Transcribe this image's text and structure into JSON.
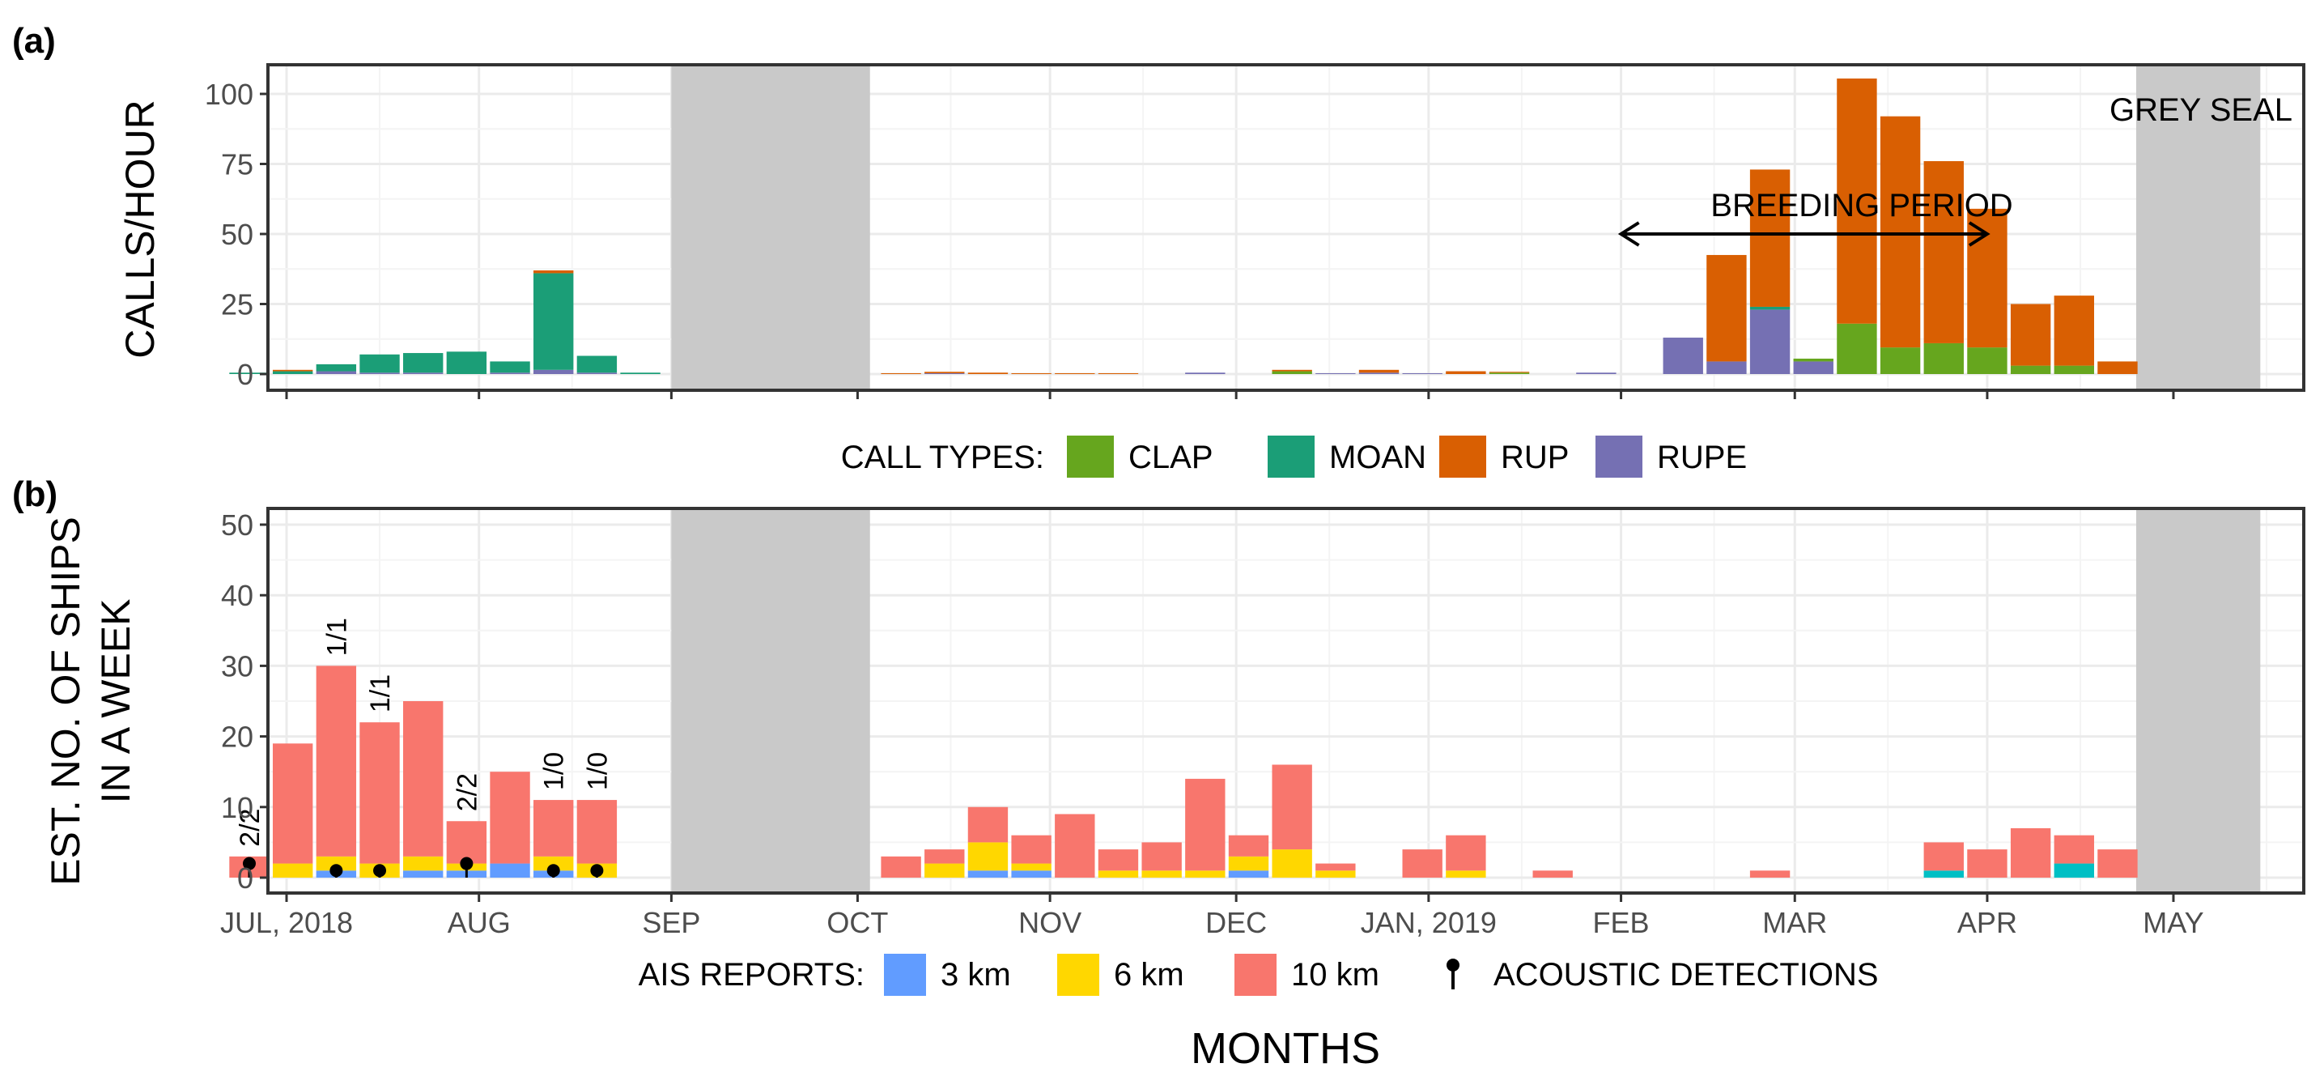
{
  "colors": {
    "CLAP": "#66A61E",
    "MOAN": "#1B9E77",
    "RUP": "#D95F02",
    "RUPE": "#7570B3",
    "3 km": "#619CFF",
    "6 km": "#FFD700",
    "10 km": "#F8766D",
    "teal_segment": "#00BFC4",
    "gap_shade": "#C9C9C9",
    "grid": "#EBEBEB"
  },
  "figure": {
    "x_axis_title": "MONTHS",
    "x_ticks": [
      "JUL, 2018",
      "AUG",
      "SEP",
      "OCT",
      "NOV",
      "DEC",
      "JAN, 2019",
      "FEB",
      "MAR",
      "APR",
      "MAY"
    ],
    "gap_periods": [
      [
        "2018-09-01",
        "2018-10-03"
      ],
      [
        "2019-04-25",
        "2019-05-15"
      ]
    ]
  },
  "chart_data": [
    {
      "type": "bar",
      "panel_label": "(a)",
      "stacked": true,
      "ylabel": "CALLS/HOUR",
      "ylim": [
        0,
        110
      ],
      "y_ticks": [
        0,
        25,
        50,
        75,
        100
      ],
      "grid": true,
      "annotations": {
        "species": "GREY SEAL",
        "breeding_period": "BREEDING PERIOD",
        "breeding_start": "2019-02-01",
        "breeding_end": "2019-04-01"
      },
      "legend": {
        "title": "CALL TYPES:",
        "position": "bottom",
        "items": [
          "CLAP",
          "MOAN",
          "RUP",
          "RUPE"
        ]
      },
      "series_order": [
        "RUPE",
        "CLAP",
        "MOAN",
        "RUP"
      ],
      "weeks": [
        {
          "date": "2018-06-25",
          "CLAP": 0,
          "MOAN": 0.5,
          "RUP": 0,
          "RUPE": 0
        },
        {
          "date": "2018-07-02",
          "CLAP": 0,
          "MOAN": 1,
          "RUP": 0.5,
          "RUPE": 0
        },
        {
          "date": "2018-07-09",
          "CLAP": 0,
          "MOAN": 2.5,
          "RUP": 0,
          "RUPE": 1
        },
        {
          "date": "2018-07-16",
          "CLAP": 0,
          "MOAN": 6.5,
          "RUP": 0,
          "RUPE": 0.5
        },
        {
          "date": "2018-07-23",
          "CLAP": 0,
          "MOAN": 7,
          "RUP": 0,
          "RUPE": 0.5
        },
        {
          "date": "2018-07-30",
          "CLAP": 0,
          "MOAN": 8,
          "RUP": 0,
          "RUPE": 0
        },
        {
          "date": "2018-08-06",
          "CLAP": 0,
          "MOAN": 4,
          "RUP": 0,
          "RUPE": 0.5
        },
        {
          "date": "2018-08-13",
          "CLAP": 0,
          "MOAN": 34.5,
          "RUP": 1,
          "RUPE": 1.5
        },
        {
          "date": "2018-08-20",
          "CLAP": 0,
          "MOAN": 6,
          "RUP": 0,
          "RUPE": 0.5
        },
        {
          "date": "2018-08-27",
          "CLAP": 0,
          "MOAN": 0.5,
          "RUP": 0,
          "RUPE": 0
        },
        {
          "date": "2018-10-08",
          "CLAP": 0,
          "MOAN": 0,
          "RUP": 0.3,
          "RUPE": 0
        },
        {
          "date": "2018-10-15",
          "CLAP": 0,
          "MOAN": 0,
          "RUP": 0.5,
          "RUPE": 0.3
        },
        {
          "date": "2018-10-22",
          "CLAP": 0,
          "MOAN": 0,
          "RUP": 0.5,
          "RUPE": 0
        },
        {
          "date": "2018-10-29",
          "CLAP": 0,
          "MOAN": 0,
          "RUP": 0.3,
          "RUPE": 0
        },
        {
          "date": "2018-11-05",
          "CLAP": 0,
          "MOAN": 0,
          "RUP": 0.3,
          "RUPE": 0
        },
        {
          "date": "2018-11-12",
          "CLAP": 0,
          "MOAN": 0,
          "RUP": 0.3,
          "RUPE": 0
        },
        {
          "date": "2018-11-26",
          "CLAP": 0,
          "MOAN": 0,
          "RUP": 0,
          "RUPE": 0.5
        },
        {
          "date": "2018-12-03",
          "CLAP": 0,
          "MOAN": 0,
          "RUP": 0,
          "RUPE": 0
        },
        {
          "date": "2018-12-10",
          "CLAP": 1,
          "MOAN": 0,
          "RUP": 0.5,
          "RUPE": 0
        },
        {
          "date": "2018-12-17",
          "CLAP": 0,
          "MOAN": 0,
          "RUP": 0,
          "RUPE": 0.3
        },
        {
          "date": "2018-12-24",
          "CLAP": 0,
          "MOAN": 0,
          "RUP": 1,
          "RUPE": 0.5
        },
        {
          "date": "2018-12-31",
          "CLAP": 0,
          "MOAN": 0,
          "RUP": 0,
          "RUPE": 0.3
        },
        {
          "date": "2019-01-07",
          "CLAP": 0,
          "MOAN": 0,
          "RUP": 1,
          "RUPE": 0
        },
        {
          "date": "2019-01-14",
          "CLAP": 0.5,
          "MOAN": 0,
          "RUP": 0.3,
          "RUPE": 0
        },
        {
          "date": "2019-01-28",
          "CLAP": 0,
          "MOAN": 0,
          "RUP": 0,
          "RUPE": 0.5
        },
        {
          "date": "2019-02-11",
          "CLAP": 0,
          "MOAN": 0,
          "RUP": 0,
          "RUPE": 13
        },
        {
          "date": "2019-02-18",
          "CLAP": 0,
          "MOAN": 0,
          "RUP": 38,
          "RUPE": 4.5
        },
        {
          "date": "2019-02-25",
          "CLAP": 0,
          "MOAN": 1,
          "RUP": 49,
          "RUPE": 23
        },
        {
          "date": "2019-03-04",
          "CLAP": 1,
          "MOAN": 0,
          "RUP": 0,
          "RUPE": 4.5
        },
        {
          "date": "2019-03-11",
          "CLAP": 18,
          "MOAN": 0,
          "RUP": 87.5,
          "RUPE": 0
        },
        {
          "date": "2019-03-18",
          "CLAP": 9.5,
          "MOAN": 0,
          "RUP": 82.5,
          "RUPE": 0
        },
        {
          "date": "2019-03-25",
          "CLAP": 11,
          "MOAN": 0,
          "RUP": 65,
          "RUPE": 0
        },
        {
          "date": "2019-04-01",
          "CLAP": 9.5,
          "MOAN": 0,
          "RUP": 49.5,
          "RUPE": 0
        },
        {
          "date": "2019-04-08",
          "CLAP": 3,
          "MOAN": 0,
          "RUP": 22,
          "RUPE": 0
        },
        {
          "date": "2019-04-15",
          "CLAP": 3,
          "MOAN": 0,
          "RUP": 25,
          "RUPE": 0
        },
        {
          "date": "2019-04-22",
          "CLAP": 0,
          "MOAN": 0,
          "RUP": 4.5,
          "RUPE": 0
        }
      ]
    },
    {
      "type": "bar",
      "panel_label": "(b)",
      "stacked": true,
      "ylabel": "EST. NO. OF SHIPS\nIN A WEEK",
      "ylim": [
        0,
        52
      ],
      "y_ticks": [
        0,
        10,
        20,
        30,
        40,
        50
      ],
      "grid": true,
      "legend": {
        "title": "AIS REPORTS:",
        "position": "bottom",
        "items": [
          "3 km",
          "6 km",
          "10 km"
        ],
        "marker_label": "ACOUSTIC DETECTIONS"
      },
      "weeks": [
        {
          "date": "2018-06-25",
          "3 km": 0,
          "6 km": 0,
          "10 km": 3,
          "label": "2/2",
          "detections": [
            2
          ]
        },
        {
          "date": "2018-07-02",
          "3 km": 0,
          "6 km": 2,
          "10 km": 17
        },
        {
          "date": "2018-07-09",
          "3 km": 1,
          "6 km": 2,
          "10 km": 27,
          "label": "1/1",
          "detections": [
            1
          ]
        },
        {
          "date": "2018-07-16",
          "3 km": 0,
          "6 km": 2,
          "10 km": 20,
          "label": "1/1",
          "detections": [
            1
          ]
        },
        {
          "date": "2018-07-23",
          "3 km": 1,
          "6 km": 2,
          "10 km": 22
        },
        {
          "date": "2018-07-30",
          "3 km": 1,
          "6 km": 1,
          "10 km": 6,
          "label": "2/2",
          "detections": [
            2
          ]
        },
        {
          "date": "2018-08-06",
          "3 km": 2,
          "6 km": 0,
          "10 km": 13
        },
        {
          "date": "2018-08-13",
          "3 km": 1,
          "6 km": 2,
          "10 km": 8,
          "label": "1/0",
          "detections": [
            1
          ]
        },
        {
          "date": "2018-08-20",
          "3 km": 0,
          "6 km": 2,
          "10 km": 9,
          "label": "1/0",
          "detections": [
            1
          ]
        },
        {
          "date": "2018-10-08",
          "3 km": 0,
          "6 km": 0,
          "10 km": 3
        },
        {
          "date": "2018-10-15",
          "3 km": 0,
          "6 km": 2,
          "10 km": 2
        },
        {
          "date": "2018-10-22",
          "3 km": 1,
          "6 km": 4,
          "10 km": 5
        },
        {
          "date": "2018-10-29",
          "3 km": 1,
          "6 km": 1,
          "10 km": 4
        },
        {
          "date": "2018-11-05",
          "3 km": 0,
          "6 km": 0,
          "10 km": 9
        },
        {
          "date": "2018-11-12",
          "3 km": 0,
          "6 km": 1,
          "10 km": 3
        },
        {
          "date": "2018-11-19",
          "3 km": 0,
          "6 km": 1,
          "10 km": 4
        },
        {
          "date": "2018-11-26",
          "3 km": 0,
          "6 km": 1,
          "10 km": 13
        },
        {
          "date": "2018-12-03",
          "3 km": 1,
          "6 km": 2,
          "10 km": 3
        },
        {
          "date": "2018-12-10",
          "3 km": 0,
          "6 km": 4,
          "10 km": 12
        },
        {
          "date": "2018-12-17",
          "3 km": 0,
          "6 km": 1,
          "10 km": 1
        },
        {
          "date": "2018-12-31",
          "3 km": 0,
          "6 km": 0,
          "10 km": 4
        },
        {
          "date": "2019-01-07",
          "3 km": 0,
          "6 km": 1,
          "10 km": 5
        },
        {
          "date": "2019-01-21",
          "3 km": 0,
          "6 km": 0,
          "10 km": 1
        },
        {
          "date": "2019-02-25",
          "3 km": 0,
          "6 km": 0,
          "10 km": 1
        },
        {
          "date": "2019-03-25",
          "3 km": 1,
          "6 km": 0,
          "10 km": 4,
          "teal": true
        },
        {
          "date": "2019-04-01",
          "3 km": 0,
          "6 km": 0,
          "10 km": 4
        },
        {
          "date": "2019-04-08",
          "3 km": 0,
          "6 km": 0,
          "10 km": 7
        },
        {
          "date": "2019-04-15",
          "3 km": 2,
          "6 km": 0,
          "10 km": 4,
          "teal": true
        },
        {
          "date": "2019-04-22",
          "3 km": 0,
          "6 km": 0,
          "10 km": 4
        }
      ]
    }
  ]
}
